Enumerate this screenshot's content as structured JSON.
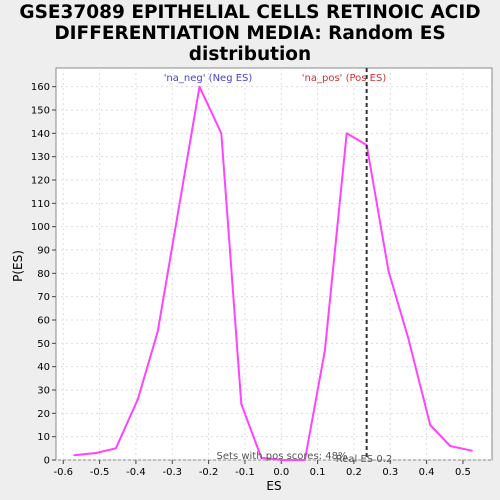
{
  "chart_data": {
    "type": "line",
    "title_lines": [
      "GSE37089 EPITHELIAL CELLS RETINOIC ACID",
      "DIFFERENTIATION MEDIA: Random ES",
      "distribution"
    ],
    "xlabel": "ES",
    "ylabel": "P(ES)",
    "xlim": [
      -0.62,
      0.58
    ],
    "ylim": [
      0,
      168
    ],
    "x_ticks": [
      -0.6,
      -0.5,
      -0.4,
      -0.3,
      -0.2,
      -0.1,
      0.0,
      0.1,
      0.2,
      0.3,
      0.4,
      0.5
    ],
    "x_tick_labels": [
      "-0.6",
      "-0.5",
      "-0.4",
      "-0.3",
      "-0.2",
      "-0.1",
      "0.0",
      "0.1",
      "0.2",
      "0.3",
      "0.4",
      "0.5"
    ],
    "y_ticks": [
      0,
      10,
      20,
      30,
      40,
      50,
      60,
      70,
      80,
      90,
      100,
      110,
      120,
      130,
      140,
      150,
      160
    ],
    "grid": true,
    "series": [
      {
        "color": "#ff44ff",
        "x": [
          -0.57,
          -0.51,
          -0.455,
          -0.395,
          -0.34,
          -0.225,
          -0.165,
          -0.11,
          -0.055,
          0.0,
          0.065,
          0.12,
          0.18,
          0.235,
          0.295,
          0.35,
          0.41,
          0.465,
          0.525
        ],
        "y": [
          2,
          3,
          5,
          26,
          55,
          160,
          140,
          24,
          1,
          0,
          0,
          47,
          140,
          135,
          81,
          52,
          15,
          6,
          4
        ]
      }
    ],
    "legend": [
      {
        "label": "'na_neg' (Neg ES)",
        "color": "#4444cc"
      },
      {
        "label": "'na_pos' (Pos ES)",
        "color": "#cc3333"
      }
    ],
    "real_es": {
      "value": 0.235,
      "label": "Real ES 0.2"
    },
    "annotation": "Sets with pos scores: 48%"
  }
}
